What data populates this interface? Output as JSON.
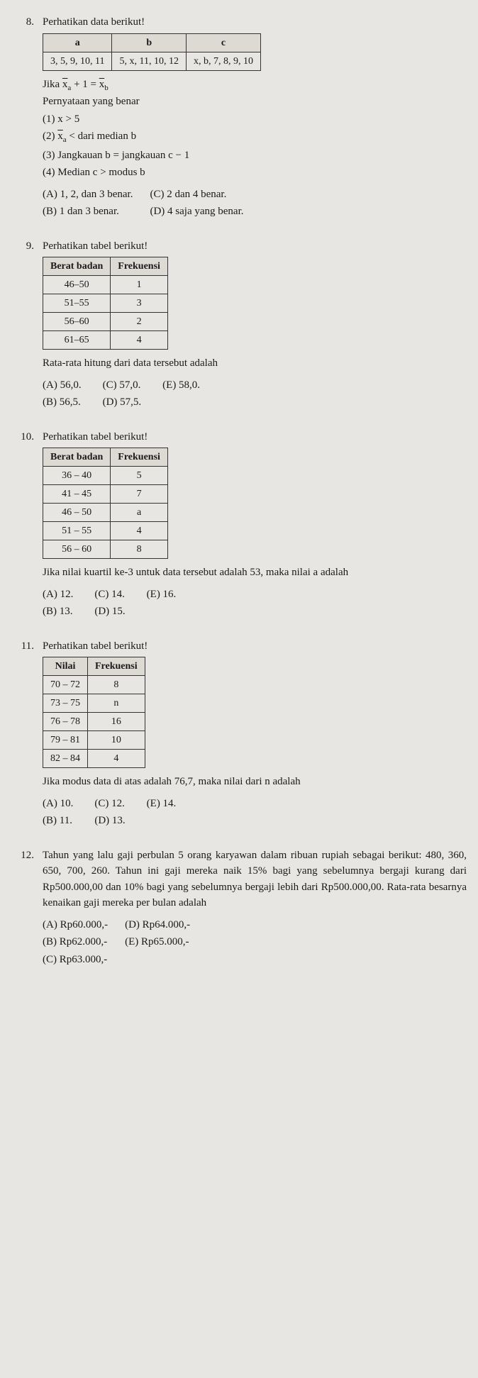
{
  "q8": {
    "num": "8.",
    "lead": "Perhatikan data berikut!",
    "table": {
      "headers": [
        "a",
        "b",
        "c"
      ],
      "row": [
        "3, 5, 9, 10, 11",
        "5, x, 11, 10, 12",
        "x, b, 7, 8, 9, 10"
      ]
    },
    "cond": "Jika x̄ₐ + 1 = x̄_b",
    "prompt": "Pernyataan yang benar",
    "stmts": {
      "s1": "(1)  x > 5",
      "s2": "(2)  x̄ₐ < dari median b",
      "s3": "(3)  Jangkauan b = jangkauan c − 1",
      "s4": "(4)  Median c > modus b"
    },
    "opts": {
      "A": "(A) 1, 2, dan 3 benar.",
      "B": "(B) 1 dan 3 benar.",
      "C": "(C) 2 dan 4 benar.",
      "D": "(D) 4 saja yang benar."
    }
  },
  "q9": {
    "num": "9.",
    "lead": "Perhatikan tabel berikut!",
    "table": {
      "h1": "Berat badan",
      "h2": "Frekuensi",
      "rows": [
        [
          "46–50",
          "1"
        ],
        [
          "51–55",
          "3"
        ],
        [
          "56–60",
          "2"
        ],
        [
          "61–65",
          "4"
        ]
      ]
    },
    "prompt": "Rata-rata hitung dari data tersebut adalah",
    "opts": {
      "A": "(A) 56,0.",
      "B": "(B) 56,5.",
      "C": "(C) 57,0.",
      "D": "(D) 57,5.",
      "E": "(E) 58,0."
    }
  },
  "q10": {
    "num": "10.",
    "lead": "Perhatikan tabel berikut!",
    "table": {
      "h1": "Berat badan",
      "h2": "Frekuensi",
      "rows": [
        [
          "36 – 40",
          "5"
        ],
        [
          "41 – 45",
          "7"
        ],
        [
          "46 – 50",
          "a"
        ],
        [
          "51 – 55",
          "4"
        ],
        [
          "56 – 60",
          "8"
        ]
      ]
    },
    "prompt": "Jika nilai kuartil ke-3 untuk data tersebut adalah 53, maka nilai a adalah",
    "opts": {
      "A": "(A) 12.",
      "B": "(B) 13.",
      "C": "(C) 14.",
      "D": "(D) 15.",
      "E": "(E) 16."
    }
  },
  "q11": {
    "num": "11.",
    "lead": "Perhatikan tabel berikut!",
    "table": {
      "h1": "Nilai",
      "h2": "Frekuensi",
      "rows": [
        [
          "70 – 72",
          "8"
        ],
        [
          "73 – 75",
          "n"
        ],
        [
          "76 – 78",
          "16"
        ],
        [
          "79 – 81",
          "10"
        ],
        [
          "82 – 84",
          "4"
        ]
      ]
    },
    "prompt": "Jika modus data di atas adalah 76,7, maka nilai dari n adalah",
    "opts": {
      "A": "(A) 10.",
      "B": "(B) 11.",
      "C": "(C) 12.",
      "D": "(D) 13.",
      "E": "(E) 14."
    }
  },
  "q12": {
    "num": "12.",
    "text": "Tahun yang lalu gaji perbulan 5 orang karyawan dalam ribuan rupiah sebagai berikut: 480, 360, 650, 700, 260. Tahun ini gaji mereka naik 15% bagi yang sebelumnya bergaji kurang dari Rp500.000,00 dan 10% bagi yang sebelumnya bergaji lebih dari Rp500.000,00. Rata-rata besarnya kenaikan gaji mereka per bulan adalah",
    "opts": {
      "A": "(A) Rp60.000,-",
      "B": "(B) Rp62.000,-",
      "C": "(C) Rp63.000,-",
      "D": "(D) Rp64.000,-",
      "E": "(E) Rp65.000,-"
    }
  }
}
